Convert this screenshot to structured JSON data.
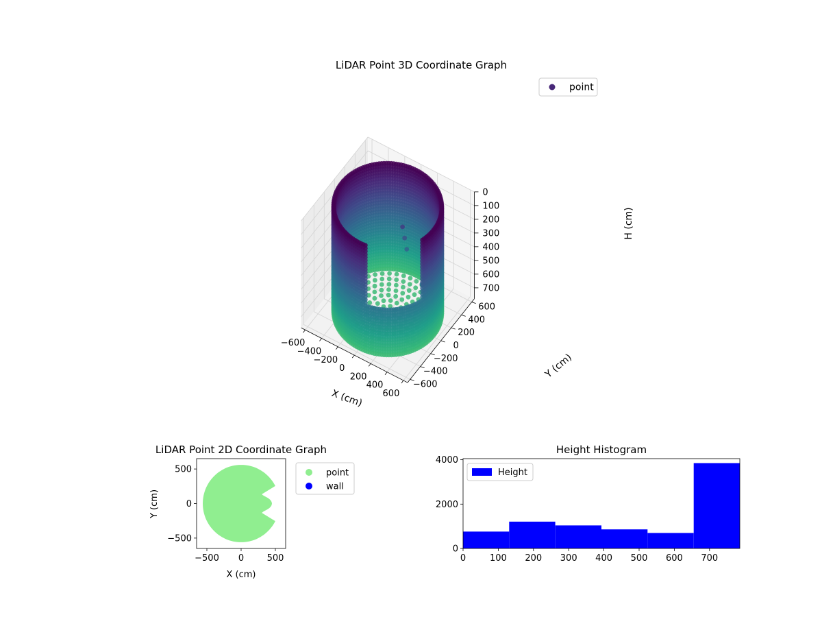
{
  "chart_data": [
    {
      "type": "scatter",
      "projection": "3d",
      "title": "LiDAR Point 3D Coordinate Graph",
      "xlabel": "X (cm)",
      "ylabel": "Y (cm)",
      "zlabel": "H (cm)",
      "xticks": [
        -600,
        -400,
        -200,
        0,
        200,
        400,
        600
      ],
      "yticks": [
        -600,
        -400,
        -200,
        0,
        200,
        400,
        600
      ],
      "zticks": [
        0,
        100,
        200,
        300,
        400,
        500,
        600,
        700
      ],
      "xlim": [
        -650,
        650
      ],
      "ylim": [
        -650,
        650
      ],
      "zlim": [
        780,
        0
      ],
      "zaxis_inverted": true,
      "colormap": "viridis",
      "legend": {
        "location": "upper-right",
        "entries": [
          {
            "name": "point",
            "color": "#482878"
          }
        ]
      },
      "description_of_data": {
        "shape": "cylindrical wall",
        "radius_cm": 560,
        "height_range_cm": [
          0,
          780
        ],
        "wall_gap_angle_deg": [
          -80,
          -20
        ],
        "interior_floor_points": true,
        "outlier_points": [
          {
            "x": 80,
            "y": 160,
            "h": 200
          },
          {
            "x": 100,
            "y": 170,
            "h": 280
          },
          {
            "x": 120,
            "y": 180,
            "h": 360
          },
          {
            "x": 380,
            "y": 60,
            "h": 480
          },
          {
            "x": 460,
            "y": 20,
            "h": 540
          },
          {
            "x": 520,
            "y": -40,
            "h": 560
          },
          {
            "x": 430,
            "y": -340,
            "h": 760
          }
        ]
      }
    },
    {
      "type": "scatter",
      "title": "LiDAR Point 2D Coordinate Graph",
      "xlabel": "X (cm)",
      "ylabel": "Y (cm)",
      "xticks": [
        -500,
        0,
        500
      ],
      "yticks": [
        -500,
        0,
        500
      ],
      "xlim": [
        -650,
        650
      ],
      "ylim": [
        -650,
        650
      ],
      "series": [
        {
          "name": "point",
          "color": "#90ee90",
          "radius_cm": 560,
          "notch_angle_deg": [
            -25,
            25
          ]
        },
        {
          "name": "wall",
          "color": "#0000ff"
        }
      ],
      "legend": {
        "location": "outside-right"
      }
    },
    {
      "type": "bar",
      "subtype": "histogram",
      "title": "Height Histogram",
      "xlabel": "",
      "ylabel": "",
      "bin_edges": [
        0,
        131,
        262,
        393,
        524,
        655,
        786
      ],
      "counts": [
        760,
        1210,
        1040,
        860,
        700,
        3850
      ],
      "color": "#0000ff",
      "xticks": [
        0,
        100,
        200,
        300,
        400,
        500,
        600,
        700
      ],
      "yticks": [
        0,
        2000,
        4000
      ],
      "xlim": [
        0,
        786
      ],
      "ylim": [
        0,
        4050
      ],
      "legend": {
        "location": "top-left",
        "entries": [
          {
            "name": "Height",
            "color": "#0000ff"
          }
        ]
      }
    }
  ]
}
